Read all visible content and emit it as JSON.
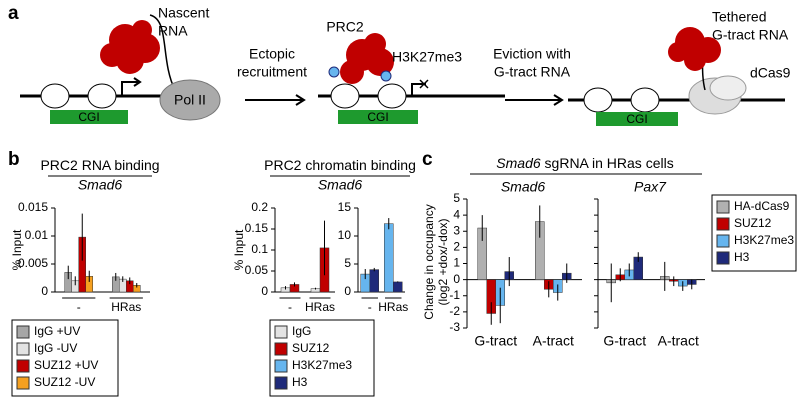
{
  "panel_labels": [
    "a",
    "b",
    "c"
  ],
  "diagram": {
    "nascent_rna": [
      "Nascent",
      "RNA"
    ],
    "pol_ii": "Pol II",
    "cgi": [
      "CGI",
      "CGI",
      "CGI"
    ],
    "step1": [
      "Ectopic",
      "recruitment"
    ],
    "prc2": "PRC2",
    "h3k27me3": "H3K27me3",
    "step2": [
      "Eviction with",
      "G-tract RNA"
    ],
    "tethered": [
      "Tethered",
      "G-tract RNA"
    ],
    "dcas9": "dCas9"
  },
  "chart_data": [
    {
      "type": "bar",
      "title": "PRC2 RNA binding",
      "subtitle": "Smad6",
      "ylabel": "% Input",
      "categories": [
        "-",
        "HRas"
      ],
      "ylim": [
        0,
        0.015
      ],
      "yticks": [
        0,
        0.005,
        0.01,
        0.015
      ],
      "series": [
        {
          "name": "IgG +UV",
          "color": "#a6a6a6",
          "values": [
            0.0035,
            0.0027
          ],
          "errors": [
            0.0012,
            0.0007
          ]
        },
        {
          "name": "IgG -UV",
          "color": "#e3e3e3",
          "values": [
            0.002,
            0.0023
          ],
          "errors": [
            0.0008,
            0.0005
          ]
        },
        {
          "name": "SUZ12 +UV",
          "color": "#c00000",
          "values": [
            0.0098,
            0.002
          ],
          "errors": [
            0.0042,
            0.0006
          ]
        },
        {
          "name": "SUZ12 -UV",
          "color": "#f5a020",
          "values": [
            0.0028,
            0.0012
          ],
          "errors": [
            0.001,
            0.0004
          ]
        }
      ]
    },
    {
      "type": "bar",
      "title": "PRC2 chromatin binding",
      "subtitle": "Smad6",
      "ylabel": "% Input",
      "categories": [
        "-",
        "HRas"
      ],
      "ylim": [
        0,
        0.2
      ],
      "yticks": [
        0,
        0.05,
        0.1,
        0.15,
        0.2
      ],
      "series": [
        {
          "name": "IgG",
          "color": "#e3e3e3",
          "values": [
            0.01,
            0.008
          ],
          "errors": [
            0.004,
            0.002
          ]
        },
        {
          "name": "SUZ12",
          "color": "#c00000",
          "values": [
            0.018,
            0.105
          ],
          "errors": [
            0.005,
            0.065
          ]
        }
      ]
    },
    {
      "type": "bar",
      "categories": [
        "-",
        "HRas"
      ],
      "ylim": [
        0,
        15
      ],
      "yticks": [
        0,
        5,
        10,
        15
      ],
      "series": [
        {
          "name": "H3K27me3",
          "color": "#66b5ee",
          "values": [
            3.2,
            12.2
          ],
          "errors": [
            0.9,
            1.0
          ]
        },
        {
          "name": "H3",
          "color": "#1f2a7a",
          "values": [
            4.0,
            1.8
          ],
          "errors": [
            0.3,
            0.1
          ]
        }
      ]
    },
    {
      "type": "bar",
      "title_italic": "Smad6",
      "title": "sgRNA in HRas cells",
      "subtitle": "Smad6",
      "ylabel": [
        "Change in occupancy",
        "(log2 +dox/-dox)"
      ],
      "categories": [
        "G-tract",
        "A-tract"
      ],
      "ylim": [
        -3,
        5
      ],
      "yticks": [
        -3,
        -2,
        -1,
        0,
        1,
        2,
        3,
        4,
        5
      ],
      "series": [
        {
          "name": "HA-dCas9",
          "color": "#b0b0b0",
          "values": [
            3.2,
            3.6
          ],
          "errors": [
            0.8,
            1.0
          ]
        },
        {
          "name": "SUZ12",
          "color": "#c00000",
          "values": [
            -2.1,
            -0.6
          ],
          "errors": [
            0.7,
            0.5
          ]
        },
        {
          "name": "H3K27me3",
          "color": "#66b5ee",
          "values": [
            -1.6,
            -0.8
          ],
          "errors": [
            1.1,
            0.5
          ]
        },
        {
          "name": "H3",
          "color": "#1f2a7a",
          "values": [
            0.5,
            0.4
          ],
          "errors": [
            0.9,
            0.6
          ]
        }
      ]
    },
    {
      "type": "bar",
      "subtitle": "Pax7",
      "show_ytick_labels": false,
      "categories": [
        "G-tract",
        "A-tract"
      ],
      "ylim": [
        -3,
        5
      ],
      "yticks": [
        -3,
        -2,
        -1,
        0,
        1,
        2,
        3,
        4,
        5
      ],
      "series": [
        {
          "name": "HA-dCas9",
          "color": "#b0b0b0",
          "values": [
            -0.2,
            0.2
          ],
          "errors": [
            1.2,
            0.9
          ]
        },
        {
          "name": "SUZ12",
          "color": "#c00000",
          "values": [
            0.3,
            -0.1
          ],
          "errors": [
            0.4,
            0.3
          ]
        },
        {
          "name": "H3K27me3",
          "color": "#66b5ee",
          "values": [
            0.6,
            -0.4
          ],
          "errors": [
            0.4,
            0.3
          ]
        },
        {
          "name": "H3",
          "color": "#1f2a7a",
          "values": [
            1.4,
            -0.3
          ],
          "errors": [
            0.3,
            0.3
          ]
        }
      ]
    }
  ]
}
